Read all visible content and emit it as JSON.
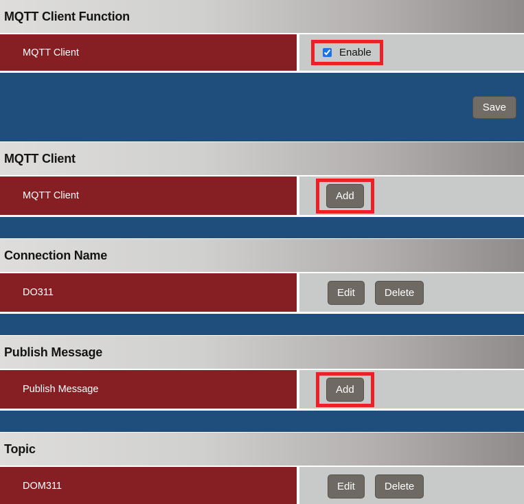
{
  "colors": {
    "row_label_background": "#851f24",
    "control_cell_background": "#c8caca",
    "separator_bar_blue": "#1f4e7c",
    "header_gradient_start": "#dedddb",
    "header_gradient_end": "#8f8b8b",
    "button_gray": "#6e6963",
    "highlight_red": "#ec2027",
    "checkbox_blue": "#1b73e8"
  },
  "sections": [
    {
      "header": "MQTT Client Function",
      "row": {
        "label": "MQTT Client",
        "checkbox": {
          "label": "Enable",
          "checked": "checked"
        }
      },
      "footer": {
        "save_label": "Save"
      }
    },
    {
      "header": "MQTT Client",
      "row": {
        "label": "MQTT Client",
        "buttons": [
          {
            "label": "Add"
          }
        ]
      }
    },
    {
      "header": "Connection Name",
      "row": {
        "label": "DO311",
        "buttons": [
          {
            "label": "Edit"
          },
          {
            "label": "Delete"
          }
        ]
      }
    },
    {
      "header": "Publish Message",
      "row": {
        "label": "Publish Message",
        "buttons": [
          {
            "label": "Add"
          }
        ]
      }
    },
    {
      "header": "Topic",
      "row": {
        "label": "DOM311",
        "buttons": [
          {
            "label": "Edit"
          },
          {
            "label": "Delete"
          }
        ]
      }
    }
  ]
}
